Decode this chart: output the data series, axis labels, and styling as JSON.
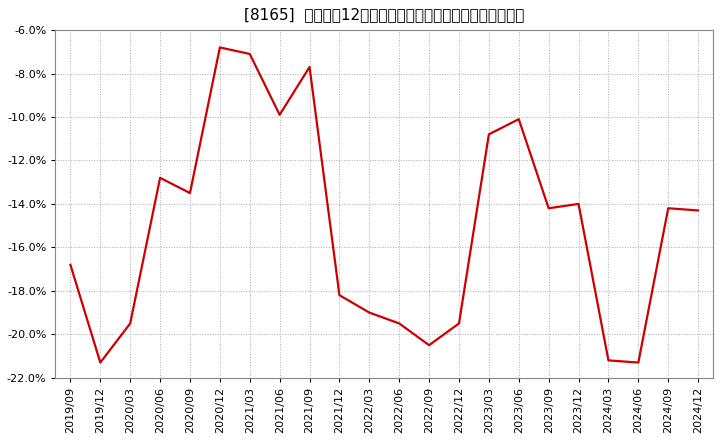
{
  "title": "[8165]  売上高の12か月移動合計の対前年同期増減率の推移",
  "x_labels": [
    "2019/09",
    "2019/12",
    "2020/03",
    "2020/06",
    "2020/09",
    "2020/12",
    "2021/03",
    "2021/06",
    "2021/09",
    "2021/12",
    "2022/03",
    "2022/06",
    "2022/09",
    "2022/12",
    "2023/03",
    "2023/06",
    "2023/09",
    "2023/12",
    "2024/03",
    "2024/06",
    "2024/09",
    "2024/12"
  ],
  "y_values": [
    -16.8,
    -21.3,
    -19.5,
    -12.8,
    -13.5,
    -6.8,
    -7.1,
    -9.9,
    -7.7,
    -18.2,
    -19.0,
    -19.5,
    -20.5,
    -19.5,
    -10.8,
    -10.1,
    -14.2,
    -14.0,
    -21.2,
    -21.3,
    -14.2,
    -14.3
  ],
  "line_color": "#cc0000",
  "bg_color": "#ffffff",
  "plot_bg_color": "#ffffff",
  "grid_color": "#aaaaaa",
  "ylim": [
    -22.0,
    -6.0
  ],
  "yticks": [
    -6.0,
    -8.0,
    -10.0,
    -12.0,
    -14.0,
    -16.0,
    -18.0,
    -20.0,
    -22.0
  ],
  "title_fontsize": 11,
  "tick_fontsize": 8,
  "line_width": 1.6
}
